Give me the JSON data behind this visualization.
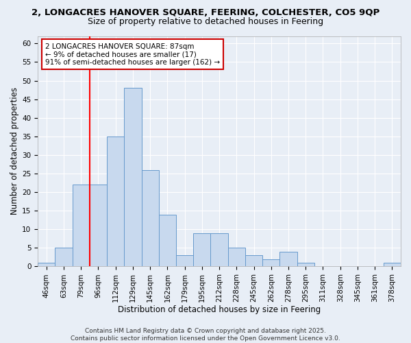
{
  "title_line1": "2, LONGACRES HANOVER SQUARE, FEERING, COLCHESTER, CO5 9QP",
  "title_line2": "Size of property relative to detached houses in Feering",
  "xlabel": "Distribution of detached houses by size in Feering",
  "ylabel": "Number of detached properties",
  "categories": [
    "46sqm",
    "63sqm",
    "79sqm",
    "96sqm",
    "112sqm",
    "129sqm",
    "145sqm",
    "162sqm",
    "179sqm",
    "195sqm",
    "212sqm",
    "228sqm",
    "245sqm",
    "262sqm",
    "278sqm",
    "295sqm",
    "311sqm",
    "328sqm",
    "345sqm",
    "361sqm",
    "378sqm"
  ],
  "values": [
    1,
    5,
    22,
    22,
    35,
    48,
    26,
    14,
    3,
    9,
    9,
    5,
    3,
    2,
    4,
    1,
    0,
    0,
    0,
    0,
    1
  ],
  "bar_color": "#c8d9ee",
  "bar_edge_color": "#6699cc",
  "red_line_x": 2.5,
  "ylim": [
    0,
    62
  ],
  "yticks": [
    0,
    5,
    10,
    15,
    20,
    25,
    30,
    35,
    40,
    45,
    50,
    55,
    60
  ],
  "annotation_text": "2 LONGACRES HANOVER SQUARE: 87sqm\n← 9% of detached houses are smaller (17)\n91% of semi-detached houses are larger (162) →",
  "annotation_box_color": "#ffffff",
  "annotation_box_edge": "#cc0000",
  "footer_text": "Contains HM Land Registry data © Crown copyright and database right 2025.\nContains public sector information licensed under the Open Government Licence v3.0.",
  "background_color": "#e8eef6",
  "plot_background": "#e8eef6",
  "grid_color": "#ffffff",
  "title1_fontsize": 9.5,
  "title2_fontsize": 9,
  "axis_label_fontsize": 8.5,
  "tick_fontsize": 7.5,
  "annotation_fontsize": 7.5,
  "footer_fontsize": 6.5
}
